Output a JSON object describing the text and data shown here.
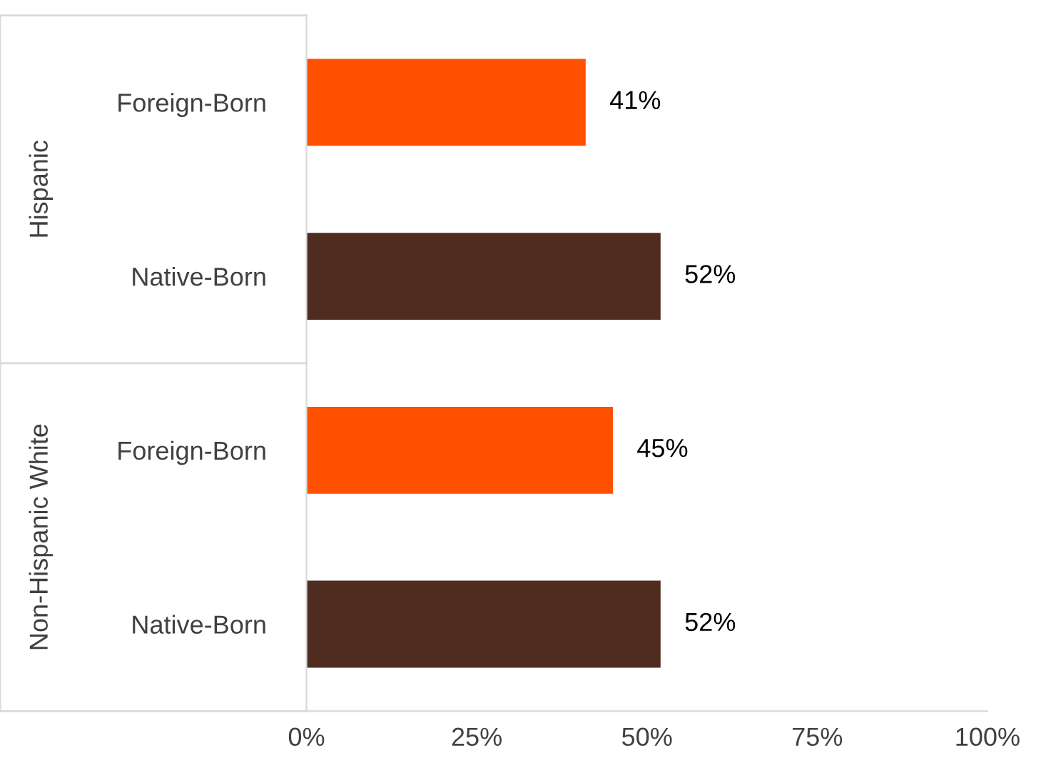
{
  "chart_data": {
    "type": "bar",
    "orientation": "horizontal",
    "categories": [
      "Foreign-Born",
      "Native-Born",
      "Foreign-Born",
      "Native-Born"
    ],
    "values": [
      41,
      52,
      45,
      52
    ],
    "colors": [
      "#ff5000",
      "#4f2c1f",
      "#ff5000",
      "#4f2c1f"
    ],
    "value_labels": [
      "41%",
      "52%",
      "45%",
      "52%"
    ],
    "xlim": [
      0,
      100
    ],
    "xticks": [
      {
        "value": 0,
        "label": "0%"
      },
      {
        "value": 25,
        "label": "25%"
      },
      {
        "value": 50,
        "label": "50%"
      },
      {
        "value": 75,
        "label": "75%"
      },
      {
        "value": 100,
        "label": "100%"
      }
    ],
    "annotations": [
      "Hispanic",
      "Non-Hispanic White"
    ],
    "grid": false
  }
}
